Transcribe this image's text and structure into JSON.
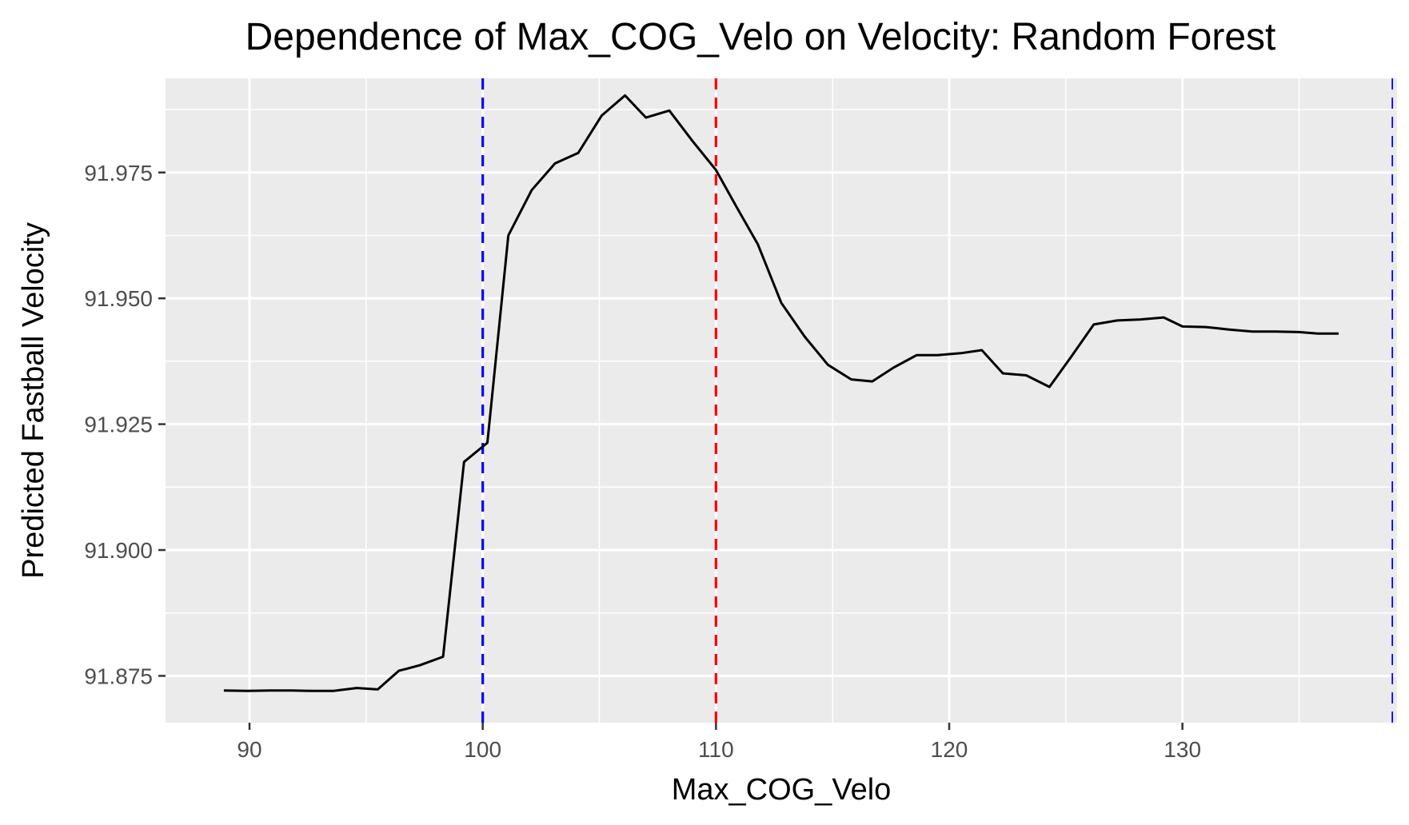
{
  "chart_data": {
    "type": "line",
    "title": "Dependence of Max_COG_Velo on Velocity: Random Forest",
    "xlabel": "Max_COG_Velo",
    "ylabel": "Predicted Fastball Velocity",
    "xlim": [
      86.4,
      139.2
    ],
    "ylim": [
      91.8657,
      91.9937
    ],
    "x_ticks": [
      90,
      100,
      110,
      120,
      130
    ],
    "x_tick_labels": [
      "90",
      "100",
      "110",
      "120",
      "130"
    ],
    "y_ticks": [
      91.875,
      91.9,
      91.925,
      91.95,
      91.975
    ],
    "y_tick_labels": [
      "91.875",
      "91.900",
      "91.925",
      "91.950",
      "91.975"
    ],
    "grid": true,
    "background_color": "#ebebeb",
    "grid_color": "#ffffff",
    "line_color": "#000000",
    "series": [
      {
        "x": [
          88.9,
          89.9,
          90.9,
          91.8,
          92.7,
          93.6,
          94.6,
          95.5,
          96.4,
          97.3,
          98.3,
          99.2,
          100.2,
          101.1,
          102.1,
          103.1,
          104.1,
          105.1,
          106.1,
          107.0,
          108.0,
          109.0,
          110.0,
          110.9,
          111.8,
          112.8,
          113.8,
          114.8,
          115.8,
          116.7,
          117.6,
          118.6,
          119.5,
          120.5,
          121.4,
          122.3,
          123.3,
          124.3,
          125.2,
          126.2,
          127.2,
          128.2,
          129.2,
          130.0,
          131.0,
          132.0,
          133.0,
          134.0,
          135.0,
          135.8,
          136.7
        ],
        "y": [
          91.8721,
          91.872,
          91.8721,
          91.8721,
          91.872,
          91.872,
          91.8726,
          91.8723,
          91.876,
          91.8771,
          91.8788,
          91.9175,
          91.9213,
          91.9625,
          91.9715,
          91.9768,
          91.9789,
          91.9863,
          91.9903,
          91.9859,
          91.9873,
          91.9812,
          91.9755,
          91.968,
          91.9607,
          91.9491,
          91.9424,
          91.9368,
          91.9339,
          91.9335,
          91.9362,
          91.9387,
          91.9387,
          91.9391,
          91.9397,
          91.9351,
          91.9347,
          91.9324,
          91.9382,
          91.9448,
          91.9456,
          91.9458,
          91.9462,
          91.9444,
          91.9443,
          91.9438,
          91.9434,
          91.9434,
          91.9433,
          91.943,
          91.943
        ]
      }
    ],
    "reference_lines": [
      {
        "x": 100,
        "color": "#0000ff",
        "style": "dashed"
      },
      {
        "x": 110,
        "color": "#ff0000",
        "style": "dashed"
      },
      {
        "x": 139.0,
        "color": "#0000ff",
        "style": "dashed"
      }
    ]
  }
}
